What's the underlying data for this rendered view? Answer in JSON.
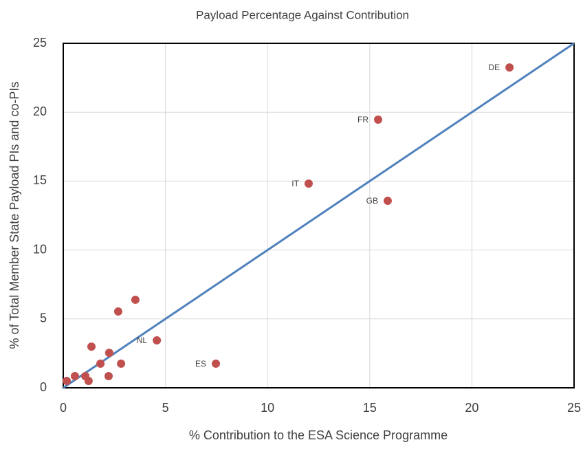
{
  "chart_data": {
    "type": "scatter",
    "title": "Payload Percentage Against Contribution",
    "xlabel": "% Contribution to the ESA Science Programme",
    "ylabel": "% of Total Member State Payload PIs and co-PIs",
    "x": [
      21.84,
      15.41,
      12.01,
      15.88,
      4.58,
      7.47,
      3.53,
      2.69,
      1.38,
      2.25,
      1.82,
      2.83,
      0.57,
      1.08,
      2.22,
      0.17,
      1.24
    ],
    "y": [
      23.25,
      19.46,
      14.82,
      13.57,
      3.44,
      1.75,
      6.39,
      5.54,
      2.99,
      2.54,
      1.75,
      1.75,
      0.85,
      0.85,
      0.85,
      0.5,
      0.5
    ],
    "point_labels": [
      "DE",
      "FR",
      "IT",
      "GB",
      "NL",
      "ES",
      null,
      null,
      null,
      null,
      null,
      null,
      null,
      null,
      null,
      null,
      null
    ],
    "color": "#c0504d",
    "line": {
      "x": [
        0,
        25
      ],
      "y": [
        0,
        25
      ],
      "color": "#4f81bd"
    },
    "xlim": [
      0,
      25
    ],
    "ylim": [
      0,
      25
    ],
    "xticks": [
      0,
      5,
      10,
      15,
      20,
      25
    ],
    "yticks": [
      0,
      5,
      10,
      15,
      20,
      25
    ],
    "grid": true
  }
}
